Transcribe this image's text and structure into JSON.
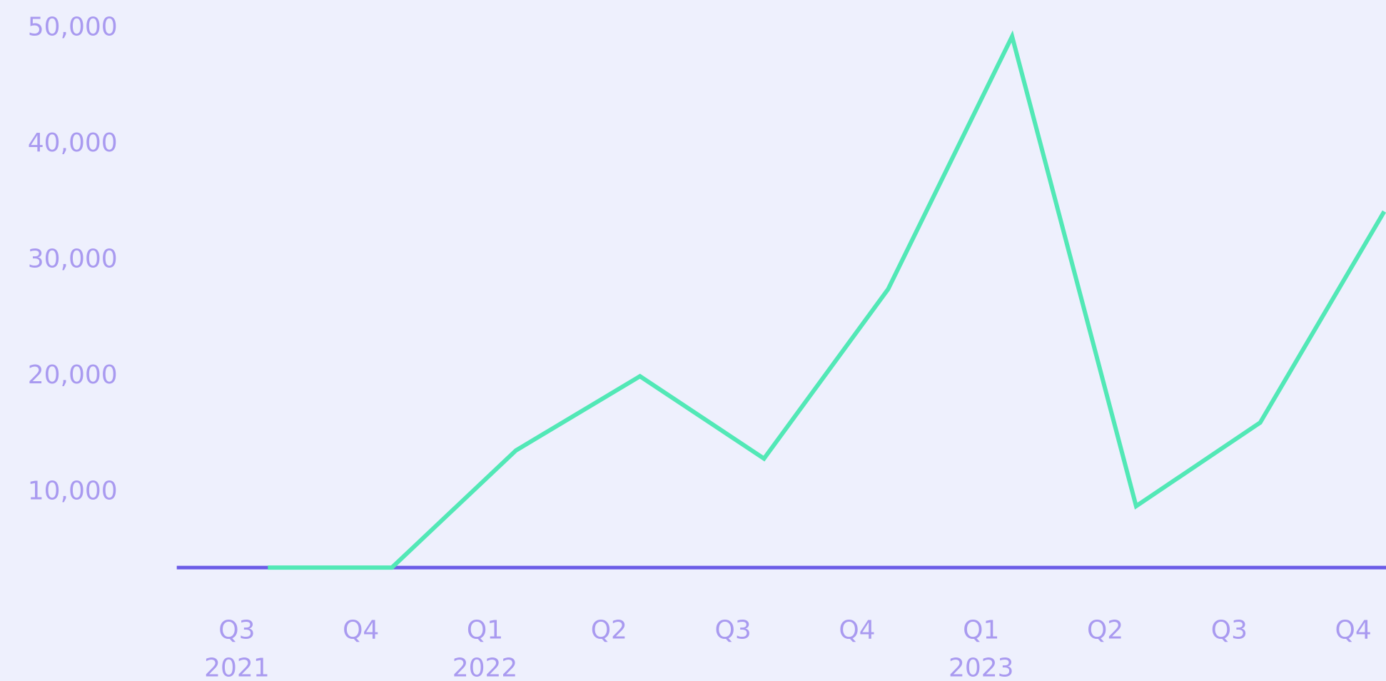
{
  "chart_data": {
    "type": "line",
    "categories": [
      "Q3",
      "Q4",
      "Q1",
      "Q2",
      "Q3",
      "Q4",
      "Q1",
      "Q2",
      "Q3",
      "Q4"
    ],
    "category_years": [
      "2021",
      null,
      "2022",
      null,
      null,
      null,
      "2023",
      null,
      null,
      null
    ],
    "series": [
      {
        "color": "#52e8b6",
        "values": [
          3500,
          3500,
          13600,
          20000,
          12900,
          27500,
          49300,
          8800,
          16000,
          34200
        ]
      }
    ],
    "ylim": [
      3500,
      50000
    ],
    "yticks": [
      {
        "value": 10000,
        "label": "10,000"
      },
      {
        "value": 20000,
        "label": "20,000"
      },
      {
        "value": 30000,
        "label": "30,000"
      },
      {
        "value": 40000,
        "label": "40,000"
      },
      {
        "value": 50000,
        "label": "50,000"
      }
    ],
    "axis_color": "#6b5ce7",
    "grid": false
  }
}
